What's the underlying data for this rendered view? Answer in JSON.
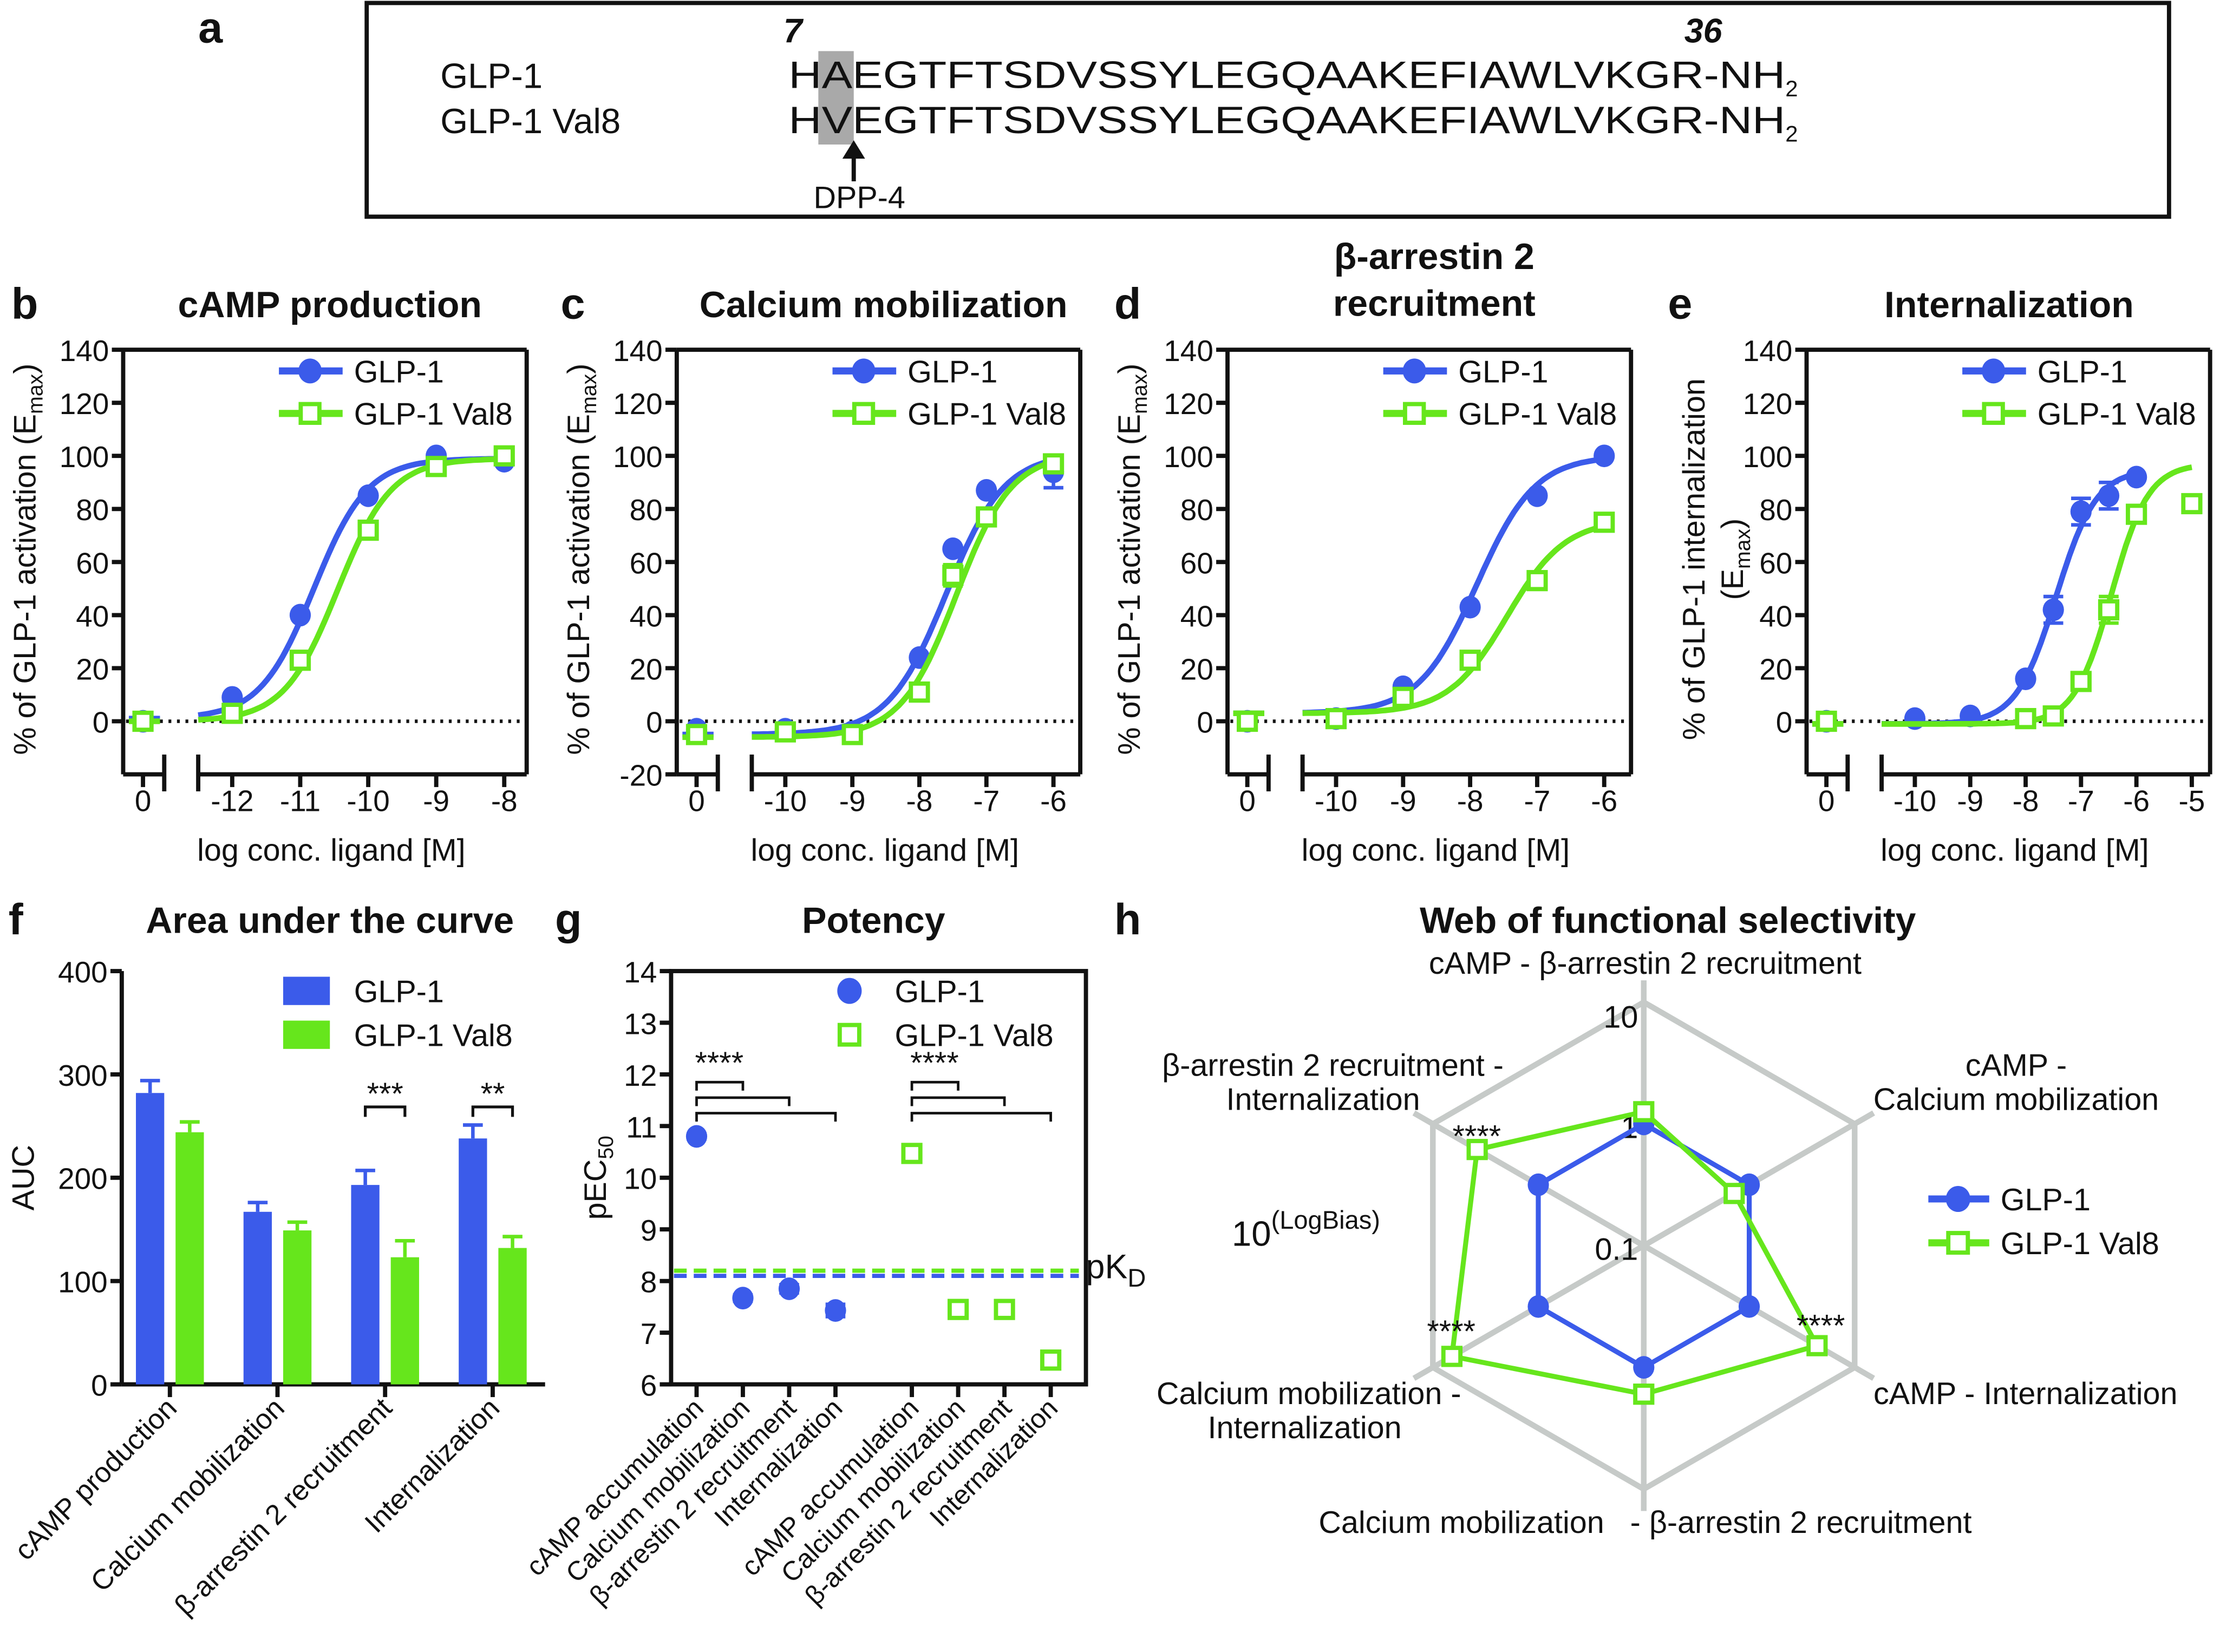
{
  "panel_a": {
    "label": "a",
    "residue_start": "7",
    "residue_end": "36",
    "peptides": [
      {
        "name": "GLP-1",
        "sequence": "HAEGTFTSDVSSYLEGQAAKEFIAWLVKGR-NH",
        "subscript": "2",
        "color": "#3b5bea"
      },
      {
        "name": "GLP-1 Val8",
        "sequence": "HVEGTFTSDVSSYLEGQAAKEFIAWLVKGR-NH",
        "subscript": "2",
        "color": "#66e61c"
      }
    ],
    "cleavage_enzyme": "DPP-4"
  },
  "colors": {
    "glp1": "#3b5bea",
    "val8": "#66e61c",
    "grid": "#c6cac8"
  },
  "chart_data": [
    {
      "panel": "b",
      "type": "line",
      "title": [
        "cAMP production"
      ],
      "ylabel": {
        "text": "% of GLP-1 activation (E",
        "sub": "max",
        "end": ")"
      },
      "xlabel": "log conc. ligand [M]",
      "ylim": [
        -20,
        140
      ],
      "yticks": [
        0,
        20,
        40,
        60,
        80,
        100,
        120,
        140
      ],
      "xticks": [
        0,
        -12,
        -11,
        -10,
        -9,
        -8
      ],
      "zero_line": 0,
      "legend": "top-right",
      "series": [
        {
          "name": "GLP-1",
          "marker": "circle",
          "x": [
            0,
            -12,
            -11,
            -10,
            -9,
            -8
          ],
          "y": [
            0,
            9,
            40,
            85,
            100,
            98
          ],
          "err": [
            null,
            null,
            null,
            null,
            null,
            null
          ],
          "fit": {
            "bottom": 1,
            "top": 99,
            "logEC50": -10.8,
            "hill": 1.1,
            "xmax": -8
          }
        },
        {
          "name": "GLP-1 Val8",
          "marker": "open-square",
          "x": [
            0,
            -12,
            -11,
            -10,
            -9,
            -8
          ],
          "y": [
            0,
            3,
            23,
            72,
            96,
            100
          ],
          "err": [
            null,
            null,
            null,
            null,
            null,
            null
          ],
          "fit": {
            "bottom": 0,
            "top": 99,
            "logEC50": -10.45,
            "hill": 1.1,
            "xmax": -8
          }
        }
      ]
    },
    {
      "panel": "c",
      "type": "line",
      "title": [
        "Calcium mobilization"
      ],
      "ylabel": {
        "text": "% of GLP-1 activation (E",
        "sub": "max",
        "end": ")"
      },
      "xlabel": "log conc. ligand [M]",
      "ylim": [
        -20,
        140
      ],
      "yticks": [
        -20,
        0,
        20,
        40,
        60,
        80,
        100,
        120,
        140
      ],
      "xticks": [
        0,
        -10,
        -9,
        -8,
        -7,
        -6
      ],
      "zero_line": 0,
      "legend": "top-right",
      "series": [
        {
          "name": "GLP-1",
          "marker": "circle",
          "x": [
            0,
            -10,
            -9,
            -8,
            -7.5,
            -7,
            -6
          ],
          "y": [
            -3,
            -3,
            -4,
            24,
            65,
            87,
            94
          ],
          "err": [
            null,
            null,
            null,
            null,
            null,
            null,
            6
          ],
          "fit": {
            "bottom": -5,
            "top": 101,
            "logEC50": -7.6,
            "hill": 1.0,
            "xmax": -6
          }
        },
        {
          "name": "GLP-1 Val8",
          "marker": "open-square",
          "x": [
            0,
            -10,
            -9,
            -8,
            -7.5,
            -7,
            -6
          ],
          "y": [
            -5,
            -4,
            -5,
            11,
            55,
            77,
            97
          ],
          "err": [
            null,
            null,
            null,
            null,
            4,
            null,
            3
          ],
          "fit": {
            "bottom": -6,
            "top": 101,
            "logEC50": -7.45,
            "hill": 1.05,
            "xmax": -6
          }
        }
      ]
    },
    {
      "panel": "d",
      "type": "line",
      "title": [
        "β-arrestin 2",
        "recruitment"
      ],
      "ylabel": {
        "text": "% of GLP-1 activation (E",
        "sub": "max",
        "end": ")"
      },
      "xlabel": "log conc. ligand [M]",
      "ylim": [
        -20,
        140
      ],
      "yticks": [
        0,
        20,
        40,
        60,
        80,
        100,
        120,
        140
      ],
      "xticks": [
        0,
        -10,
        -9,
        -8,
        -7,
        -6
      ],
      "zero_line": 0,
      "legend": "top-right",
      "series": [
        {
          "name": "GLP-1",
          "marker": "circle",
          "x": [
            0,
            -10,
            -9,
            -8,
            -7,
            -6
          ],
          "y": [
            0,
            1,
            13,
            43,
            85,
            100
          ],
          "err": [
            null,
            null,
            null,
            null,
            null,
            null
          ],
          "fit": {
            "bottom": 3,
            "top": 100,
            "logEC50": -7.9,
            "hill": 1.0,
            "xmax": -6
          }
        },
        {
          "name": "GLP-1 Val8",
          "marker": "open-square",
          "x": [
            0,
            -10,
            -9,
            -8,
            -7,
            -6
          ],
          "y": [
            0,
            1,
            9,
            23,
            53,
            75
          ],
          "err": [
            null,
            null,
            null,
            null,
            null,
            null
          ],
          "fit": {
            "bottom": 3,
            "top": 76,
            "logEC50": -7.45,
            "hill": 1.0,
            "xmax": -6
          }
        }
      ]
    },
    {
      "panel": "e",
      "type": "line",
      "title": [
        "Internalization"
      ],
      "ylabel": {
        "text": "% of GLP-1 internalization",
        "line2": "(E",
        "sub": "max",
        "end": ")"
      },
      "xlabel": "log conc. ligand [M]",
      "ylim": [
        -20,
        140
      ],
      "yticks": [
        0,
        20,
        40,
        60,
        80,
        100,
        120,
        140
      ],
      "xticks": [
        0,
        -10,
        -9,
        -8,
        -7,
        -6,
        -5
      ],
      "zero_line": 0,
      "legend": "top-right",
      "series": [
        {
          "name": "GLP-1",
          "marker": "circle",
          "x": [
            0,
            -10,
            -9,
            -8,
            -7.5,
            -7,
            -6.5,
            -6
          ],
          "y": [
            0,
            1,
            2,
            16,
            42,
            79,
            85,
            92
          ],
          "err": [
            null,
            null,
            null,
            null,
            5,
            5,
            5,
            null
          ],
          "fit": {
            "bottom": -1,
            "top": 95,
            "logEC50": -7.45,
            "hill": 1.2,
            "xmax": -6
          }
        },
        {
          "name": "GLP-1 Val8",
          "marker": "open-square",
          "x": [
            0,
            -8,
            -7.5,
            -7,
            -6.5,
            -6,
            -5
          ],
          "y": [
            0,
            1,
            2,
            15,
            42,
            78,
            82
          ],
          "err": [
            null,
            null,
            null,
            null,
            5,
            null,
            null
          ],
          "fit": {
            "bottom": -1,
            "top": 97,
            "logEC50": -6.45,
            "hill": 1.3,
            "xmax": -5
          }
        }
      ]
    },
    {
      "panel": "f",
      "type": "bar",
      "title": [
        "Area under the curve"
      ],
      "ylabel": "AUC",
      "ylim": [
        0,
        400
      ],
      "yticks": [
        0,
        100,
        200,
        300,
        400
      ],
      "legend": "top-right",
      "categories": [
        "cAMP production",
        "Calcium mobilization",
        "β-arrestin 2 recruitment",
        "Internalization"
      ],
      "series": [
        {
          "name": "GLP-1",
          "values": [
            282,
            167,
            193,
            238
          ],
          "err": [
            12,
            9,
            14,
            13
          ]
        },
        {
          "name": "GLP-1 Val8",
          "values": [
            244,
            149,
            123,
            132
          ],
          "err": [
            10,
            8,
            16,
            11
          ]
        }
      ],
      "significance": [
        {
          "category": 2,
          "label": "***"
        },
        {
          "category": 3,
          "label": "**"
        }
      ]
    },
    {
      "panel": "g",
      "type": "scatter",
      "title": [
        "Potency"
      ],
      "ylabel": {
        "text": "pEC",
        "sub": "50"
      },
      "ylim": [
        6,
        14
      ],
      "yticks": [
        6,
        7,
        8,
        9,
        10,
        11,
        12,
        13,
        14
      ],
      "legend": "top-right",
      "categories": [
        "cAMP accumulation",
        "Calcium mobilization",
        "β-arrestin 2 recruitment",
        "Internalization",
        "cAMP accumulation",
        "Calcium mobilization",
        "β-arrestin 2 recruitment",
        "Internalization"
      ],
      "series": [
        {
          "name": "GLP-1",
          "marker": "circle",
          "category_index": [
            0,
            1,
            2,
            3
          ],
          "values": [
            10.8,
            7.67,
            7.85,
            7.43
          ],
          "err": [
            0.05,
            0.06,
            0.08,
            0.12
          ],
          "pKD": 8.1
        },
        {
          "name": "GLP-1 Val8",
          "marker": "open-square",
          "category_index": [
            4,
            5,
            6,
            7
          ],
          "values": [
            10.47,
            7.45,
            7.45,
            6.47
          ],
          "err": [
            null,
            null,
            null,
            null
          ],
          "pKD": 8.2
        }
      ],
      "reference_label": {
        "text": "pK",
        "sub": "D"
      },
      "significance": [
        {
          "from": 0,
          "to": [
            1,
            2,
            3
          ],
          "label": "****"
        },
        {
          "from": 4,
          "to": [
            5,
            6,
            7
          ],
          "label": "****"
        }
      ]
    },
    {
      "panel": "h",
      "type": "radar",
      "title": [
        "Web of functional selectivity"
      ],
      "scale_label": {
        "base": "10",
        "sup": "(LogBias)"
      },
      "rlim": [
        0.1,
        10
      ],
      "rticks": [
        "0.1",
        "1",
        "10"
      ],
      "legend": "right",
      "axes": [
        {
          "lines": [
            "cAMP - β-arrestin 2 recruitment"
          ]
        },
        {
          "lines": [
            "cAMP -",
            "Calcium mobilization"
          ]
        },
        {
          "lines": [
            "cAMP - Internalization"
          ]
        },
        {
          "lines": [
            "Calcium mobilization   - β-arrestin 2 recruitment"
          ]
        },
        {
          "lines": [
            "Calcium mobilization -",
            "Internalization"
          ]
        },
        {
          "lines": [
            "β-arrestin 2 recruitment -",
            "Internalization"
          ]
        }
      ],
      "series": [
        {
          "name": "GLP-1",
          "marker": "circle",
          "values": [
            1,
            1,
            1,
            1,
            1,
            1
          ]
        },
        {
          "name": "GLP-1 Val8",
          "marker": "open-square",
          "values": [
            1.26,
            0.72,
            4.4,
            1.66,
            6.6,
            3.8
          ]
        }
      ],
      "significance": [
        {
          "axis": 5,
          "label": "****"
        },
        {
          "axis": 4,
          "label": "****"
        },
        {
          "axis": 2,
          "label": "****"
        }
      ]
    }
  ]
}
